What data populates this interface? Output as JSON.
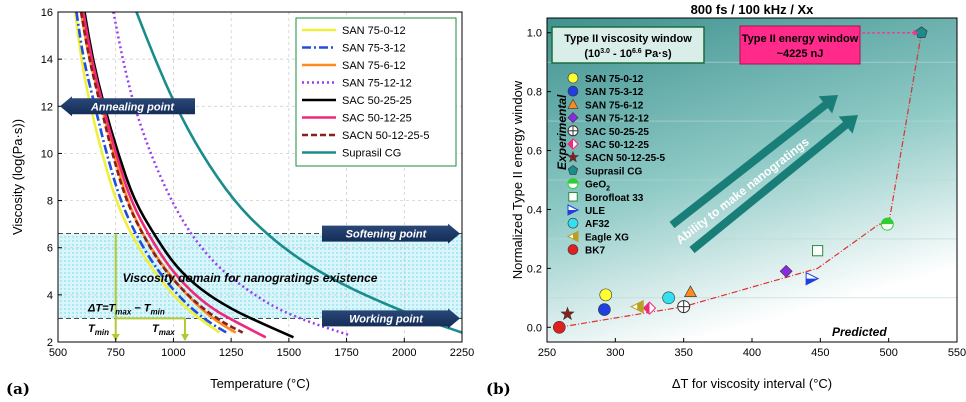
{
  "chart_data": [
    {
      "type": "line",
      "panel_label": "(a)",
      "xlabel": "Temperature (°C)",
      "ylabel": "Viscosity (log(Pa·s))",
      "xlim": [
        500,
        2250
      ],
      "ylim": [
        2,
        16
      ],
      "xticks": [
        500,
        750,
        1000,
        1250,
        1500,
        1750,
        2000,
        2250
      ],
      "yticks": [
        2,
        4,
        6,
        8,
        10,
        12,
        14,
        16
      ],
      "grid": "dashed",
      "legend": "top-right",
      "series": [
        {
          "name": "SAN 75-0-12",
          "color": "#f0f03c",
          "dash": "solid",
          "points": [
            [
              575,
              16
            ],
            [
              600,
              14
            ],
            [
              640,
              12
            ],
            [
              690,
              10
            ],
            [
              750,
              8
            ],
            [
              820,
              6.5
            ],
            [
              900,
              5.2
            ],
            [
              980,
              4.2
            ],
            [
              1060,
              3.4
            ],
            [
              1140,
              2.8
            ],
            [
              1200,
              2.4
            ]
          ]
        },
        {
          "name": "SAN 75-3-12",
          "color": "#1f4fe0",
          "dash": "dashdot",
          "points": [
            [
              580,
              16
            ],
            [
              610,
              14
            ],
            [
              660,
              12
            ],
            [
              710,
              10
            ],
            [
              770,
              8
            ],
            [
              840,
              6.5
            ],
            [
              920,
              5.2
            ],
            [
              1000,
              4.2
            ],
            [
              1080,
              3.4
            ],
            [
              1160,
              2.8
            ],
            [
              1230,
              2.4
            ]
          ]
        },
        {
          "name": "SAN 75-6-12",
          "color": "#ff8a1e",
          "dash": "solid",
          "points": [
            [
              600,
              16
            ],
            [
              635,
              14
            ],
            [
              690,
              12
            ],
            [
              740,
              10
            ],
            [
              800,
              8
            ],
            [
              870,
              6.5
            ],
            [
              955,
              5.2
            ],
            [
              1040,
              4.2
            ],
            [
              1120,
              3.4
            ],
            [
              1200,
              2.8
            ],
            [
              1270,
              2.4
            ]
          ]
        },
        {
          "name": "SAN 75-12-12",
          "color": "#9a3cf0",
          "dash": "dotted",
          "points": [
            [
              740,
              16
            ],
            [
              780,
              14
            ],
            [
              830,
              12
            ],
            [
              900,
              10
            ],
            [
              990,
              8
            ],
            [
              1080,
              6.5
            ],
            [
              1190,
              5.2
            ],
            [
              1320,
              4.2
            ],
            [
              1450,
              3.4
            ],
            [
              1600,
              2.8
            ],
            [
              1760,
              2.3
            ]
          ]
        },
        {
          "name": "SAC 50-25-25",
          "color": "#000000",
          "dash": "solid",
          "points": [
            [
              615,
              16
            ],
            [
              650,
              14
            ],
            [
              700,
              12
            ],
            [
              760,
              10
            ],
            [
              830,
              8
            ],
            [
              920,
              6.5
            ],
            [
              1010,
              5.2
            ],
            [
              1120,
              4.2
            ],
            [
              1250,
              3.4
            ],
            [
              1380,
              2.8
            ],
            [
              1520,
              2.2
            ]
          ]
        },
        {
          "name": "SAC 50-12-25",
          "color": "#f0287a",
          "dash": "solid",
          "points": [
            [
              610,
              16
            ],
            [
              645,
              14
            ],
            [
              695,
              12
            ],
            [
              750,
              10
            ],
            [
              815,
              8
            ],
            [
              895,
              6.5
            ],
            [
              980,
              5.2
            ],
            [
              1070,
              4.2
            ],
            [
              1170,
              3.4
            ],
            [
              1280,
              2.8
            ],
            [
              1400,
              2.2
            ]
          ]
        },
        {
          "name": "SACN 50-12-25-5",
          "color": "#8c1e1e",
          "dash": "dashed",
          "points": [
            [
              600,
              16
            ],
            [
              635,
              14
            ],
            [
              685,
              12
            ],
            [
              735,
              10
            ],
            [
              795,
              8
            ],
            [
              870,
              6.5
            ],
            [
              950,
              5.2
            ],
            [
              1040,
              4.2
            ],
            [
              1130,
              3.4
            ],
            [
              1220,
              2.8
            ],
            [
              1300,
              2.4
            ]
          ]
        },
        {
          "name": "Suprasil CG",
          "color": "#1a8c8c",
          "dash": "solid",
          "points": [
            [
              840,
              16
            ],
            [
              920,
              14
            ],
            [
              1010,
              12
            ],
            [
              1120,
              10
            ],
            [
              1260,
              8
            ],
            [
              1400,
              6.6
            ],
            [
              1560,
              5.4
            ],
            [
              1740,
              4.4
            ],
            [
              1920,
              3.6
            ],
            [
              2100,
              2.9
            ],
            [
              2250,
              2.4
            ]
          ]
        }
      ],
      "annotations": {
        "annealing_point": {
          "label": "Annealing point",
          "y": 12.0
        },
        "softening_point": {
          "label": "Softening point",
          "y": 6.6
        },
        "working_point": {
          "label": "Working point",
          "y": 3.0
        },
        "domain_label": "Viscosity domain for nanogratings existence",
        "domain_range": [
          3.0,
          6.6
        ],
        "delta_t_text": "ΔT=T",
        "delta_t_sub_max": "max",
        "delta_t_minus": " − T",
        "delta_t_sub_min": "min",
        "tmin_label": "T",
        "tmin_sub": "min",
        "tmax_label": "T",
        "tmax_sub": "max",
        "tmin_x": 750,
        "tmax_x": 1050
      }
    },
    {
      "type": "scatter",
      "panel_label": "(b)",
      "title": "800 fs / 100 kHz / Xx",
      "xlabel": "ΔT for viscosity interval (°C)",
      "ylabel": "Normalized Type II energy window",
      "xlim": [
        250,
        550
      ],
      "ylim": [
        -0.05,
        1.05
      ],
      "xticks": [
        250,
        300,
        350,
        400,
        450,
        500,
        550
      ],
      "yticks": [
        0.0,
        0.2,
        0.4,
        0.6,
        0.8,
        1.0
      ],
      "legend": "left",
      "legend_title": "Experimental",
      "predicted_label": "Predicted",
      "ability_label": "Ability to make nanogratings",
      "viscosity_window_title": "Type II viscosity window",
      "viscosity_window_range": "(10^3.0 - 10^6.6 Pa·s)",
      "viscosity_window_range_parts": [
        "(10",
        "3.0",
        " - 10",
        "6.6",
        " Pa·s)"
      ],
      "energy_window_title": "Type II energy window",
      "energy_window_value": "~4225 nJ",
      "points": [
        {
          "name": "SAN 75-0-12",
          "x": 293,
          "y": 0.11,
          "marker": "circle",
          "color": "#ffff33"
        },
        {
          "name": "SAN 75-3-12",
          "x": 292,
          "y": 0.06,
          "marker": "circle",
          "color": "#1f3fe0"
        },
        {
          "name": "SAN 75-6-12",
          "x": 355,
          "y": 0.12,
          "marker": "triangle-up",
          "color": "#ff8a1e"
        },
        {
          "name": "SAN 75-12-12",
          "x": 425,
          "y": 0.19,
          "marker": "diamond",
          "color": "#8a2be2"
        },
        {
          "name": "SAC 50-25-25",
          "x": 350,
          "y": 0.07,
          "marker": "circle-cross",
          "color": "#ffffff"
        },
        {
          "name": "SAC 50-12-25",
          "x": 325,
          "y": 0.065,
          "marker": "diamond-half",
          "color": "#f0287a"
        },
        {
          "name": "SACN 50-12-25-5",
          "x": 265,
          "y": 0.045,
          "marker": "star",
          "color": "#8c1e1e"
        },
        {
          "name": "Suprasil CG",
          "x": 524,
          "y": 1.0,
          "marker": "pentagon",
          "color": "#1a8c8c"
        },
        {
          "name": "GeO2",
          "x": 499,
          "y": 0.35,
          "marker": "circle-half",
          "color": "#33cc33"
        },
        {
          "name": "Borofloat 33",
          "x": 448,
          "y": 0.26,
          "marker": "square-open",
          "color": "#ffffff"
        },
        {
          "name": "ULE",
          "x": 444,
          "y": 0.165,
          "marker": "triangle-right",
          "color": "#1f3fe0"
        },
        {
          "name": "AF32",
          "x": 339,
          "y": 0.1,
          "marker": "circle",
          "color": "#33e0f0"
        },
        {
          "name": "Eagle XG",
          "x": 316,
          "y": 0.07,
          "marker": "triangle-left",
          "color": "#b8a020"
        },
        {
          "name": "BK7",
          "x": 259,
          "y": 0.0,
          "marker": "circle",
          "color": "#e02020"
        }
      ],
      "legend_labels": [
        "SAN 75-0-12",
        "SAN 75-3-12",
        "SAN 75-6-12",
        "SAN 75-12-12",
        "SAC 50-25-25",
        "SAC 50-12-25",
        "SACN 50-12-25-5",
        "Suprasil CG",
        "GeO",
        "Borofloat 33",
        "ULE",
        "AF32",
        "Eagle XG",
        "BK7"
      ],
      "legend_sub": {
        "GeO": "2"
      },
      "fit_line": [
        [
          259,
          0.0
        ],
        [
          350,
          0.07
        ],
        [
          448,
          0.2
        ],
        [
          493,
          0.35
        ],
        [
          500,
          0.35
        ],
        [
          524,
          1.0
        ]
      ],
      "colors": {
        "background_top": "#4a9a98",
        "background_bottom": "#ffffff",
        "fit": "#e03030",
        "arrow": "#1a7e78"
      }
    }
  ]
}
